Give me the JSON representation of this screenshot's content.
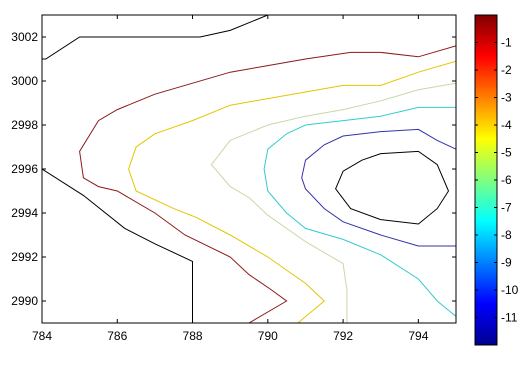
{
  "chart_data": {
    "type": "contour",
    "xlim": [
      784,
      795
    ],
    "ylim": [
      2989,
      3003
    ],
    "x_ticks": [
      784,
      786,
      788,
      790,
      792,
      794
    ],
    "y_ticks": [
      2990,
      2992,
      2994,
      2996,
      2998,
      3000,
      3002
    ],
    "grid": false,
    "colorbar": {
      "range": [
        -12,
        0
      ],
      "ticks": [
        -1,
        -2,
        -3,
        -4,
        -5,
        -6,
        -7,
        -8,
        -9,
        -10,
        -11
      ],
      "colormap": "jet",
      "placement": "right"
    },
    "contour_levels": [
      {
        "level": -1,
        "color": "#000000",
        "path": [
          [
            784,
            3001
          ],
          [
            784.1,
            3001
          ],
          [
            785,
            3002
          ],
          [
            787.1,
            3002
          ],
          [
            788.2,
            3002
          ],
          [
            789,
            3002.3
          ],
          [
            790,
            3003
          ],
          [
            791,
            3003
          ],
          [
            792,
            3003
          ],
          [
            793,
            3003
          ],
          [
            794,
            3003
          ],
          [
            794.1,
            3003
          ]
        ]
      },
      {
        "level": -1,
        "color": "#000000",
        "path": [
          [
            784,
            2996
          ],
          [
            785.1,
            2994.8
          ],
          [
            786.2,
            2993.3
          ],
          [
            787,
            2992.6
          ],
          [
            788,
            2991.8
          ],
          [
            788,
            2989
          ]
        ]
      },
      {
        "level": -2,
        "color": "#8b1a1a",
        "path": [
          [
            795,
            3001.6
          ],
          [
            794,
            3001.1
          ],
          [
            793,
            3001.3
          ],
          [
            792.2,
            3001.3
          ],
          [
            791,
            3001
          ],
          [
            790,
            3000.7
          ],
          [
            789,
            3000.4
          ],
          [
            787,
            2999.4
          ],
          [
            786,
            2998.7
          ],
          [
            785.5,
            2998.2
          ],
          [
            785,
            2996.8
          ],
          [
            785.1,
            2995.6
          ],
          [
            785.5,
            2995.2
          ],
          [
            786,
            2995
          ],
          [
            787,
            2994
          ],
          [
            787.8,
            2993
          ],
          [
            789,
            2992
          ],
          [
            789.5,
            2991.2
          ],
          [
            790.1,
            2990.5
          ],
          [
            790.5,
            2990
          ],
          [
            789.5,
            2989
          ]
        ]
      },
      {
        "level": -3,
        "color": "#e3c600",
        "path": [
          [
            795,
            3000.9
          ],
          [
            794,
            3000.4
          ],
          [
            793,
            2999.8
          ],
          [
            792,
            2999.8
          ],
          [
            791,
            2999.5
          ],
          [
            790,
            2999.2
          ],
          [
            789,
            2998.9
          ],
          [
            788,
            2998.2
          ],
          [
            787,
            2997.6
          ],
          [
            786.5,
            2997
          ],
          [
            786.3,
            2996
          ],
          [
            786.5,
            2995
          ],
          [
            787.5,
            2994.2
          ],
          [
            788.1,
            2993.8
          ],
          [
            789,
            2993
          ],
          [
            790,
            2992
          ],
          [
            791,
            2990.8
          ],
          [
            791.5,
            2990
          ],
          [
            790.8,
            2989
          ]
        ]
      },
      {
        "level": -4,
        "color": "#c8d8a8",
        "path": [
          [
            795,
            2999.9
          ],
          [
            794,
            2999.6
          ],
          [
            793,
            2999.1
          ],
          [
            792,
            2998.7
          ],
          [
            791,
            2998.4
          ],
          [
            790,
            2998
          ],
          [
            789,
            2997.3
          ],
          [
            788.5,
            2996.2
          ],
          [
            789,
            2995.2
          ],
          [
            789.5,
            2994.7
          ],
          [
            790,
            2993.9
          ],
          [
            791,
            2992.7
          ],
          [
            792,
            2991.7
          ],
          [
            792.1,
            2990.5
          ],
          [
            792.1,
            2989
          ]
        ]
      },
      {
        "level": -5,
        "color": "#33cccc",
        "path": [
          [
            795,
            2998.8
          ],
          [
            794,
            2998.8
          ],
          [
            793,
            2998.4
          ],
          [
            792,
            2998.2
          ],
          [
            791,
            2998
          ],
          [
            790.5,
            2997.6
          ],
          [
            790,
            2996.9
          ],
          [
            789.9,
            2996
          ],
          [
            790,
            2995
          ],
          [
            790.5,
            2994
          ],
          [
            791,
            2993.3
          ],
          [
            792,
            2992.8
          ],
          [
            793,
            2992.1
          ],
          [
            794,
            2991
          ],
          [
            794.5,
            2990
          ],
          [
            795,
            2989.3
          ]
        ]
      },
      {
        "level": -6,
        "color": "#3333aa",
        "path": [
          [
            795,
            2996.9
          ],
          [
            794.5,
            2997.3
          ],
          [
            794,
            2997.8
          ],
          [
            793,
            2997.7
          ],
          [
            792,
            2997.5
          ],
          [
            791.5,
            2997.1
          ],
          [
            791,
            2996.4
          ],
          [
            790.9,
            2995.6
          ],
          [
            791,
            2995.1
          ],
          [
            791.5,
            2994.2
          ],
          [
            792,
            2993.6
          ],
          [
            793,
            2993
          ],
          [
            794,
            2992.5
          ],
          [
            795,
            2992.5
          ]
        ]
      },
      {
        "level": -7,
        "color": "#000000",
        "closed": true,
        "path": [
          [
            792.5,
            2996.4
          ],
          [
            793,
            2996.7
          ],
          [
            794,
            2996.8
          ],
          [
            794.5,
            2996.2
          ],
          [
            794.8,
            2995
          ],
          [
            794.5,
            2994.2
          ],
          [
            794,
            2993.5
          ],
          [
            793,
            2993.7
          ],
          [
            792.2,
            2994.2
          ],
          [
            791.8,
            2995.1
          ],
          [
            792,
            2995.9
          ]
        ]
      }
    ]
  },
  "colors": {
    "axes": "#000000",
    "background": "#ffffff"
  }
}
